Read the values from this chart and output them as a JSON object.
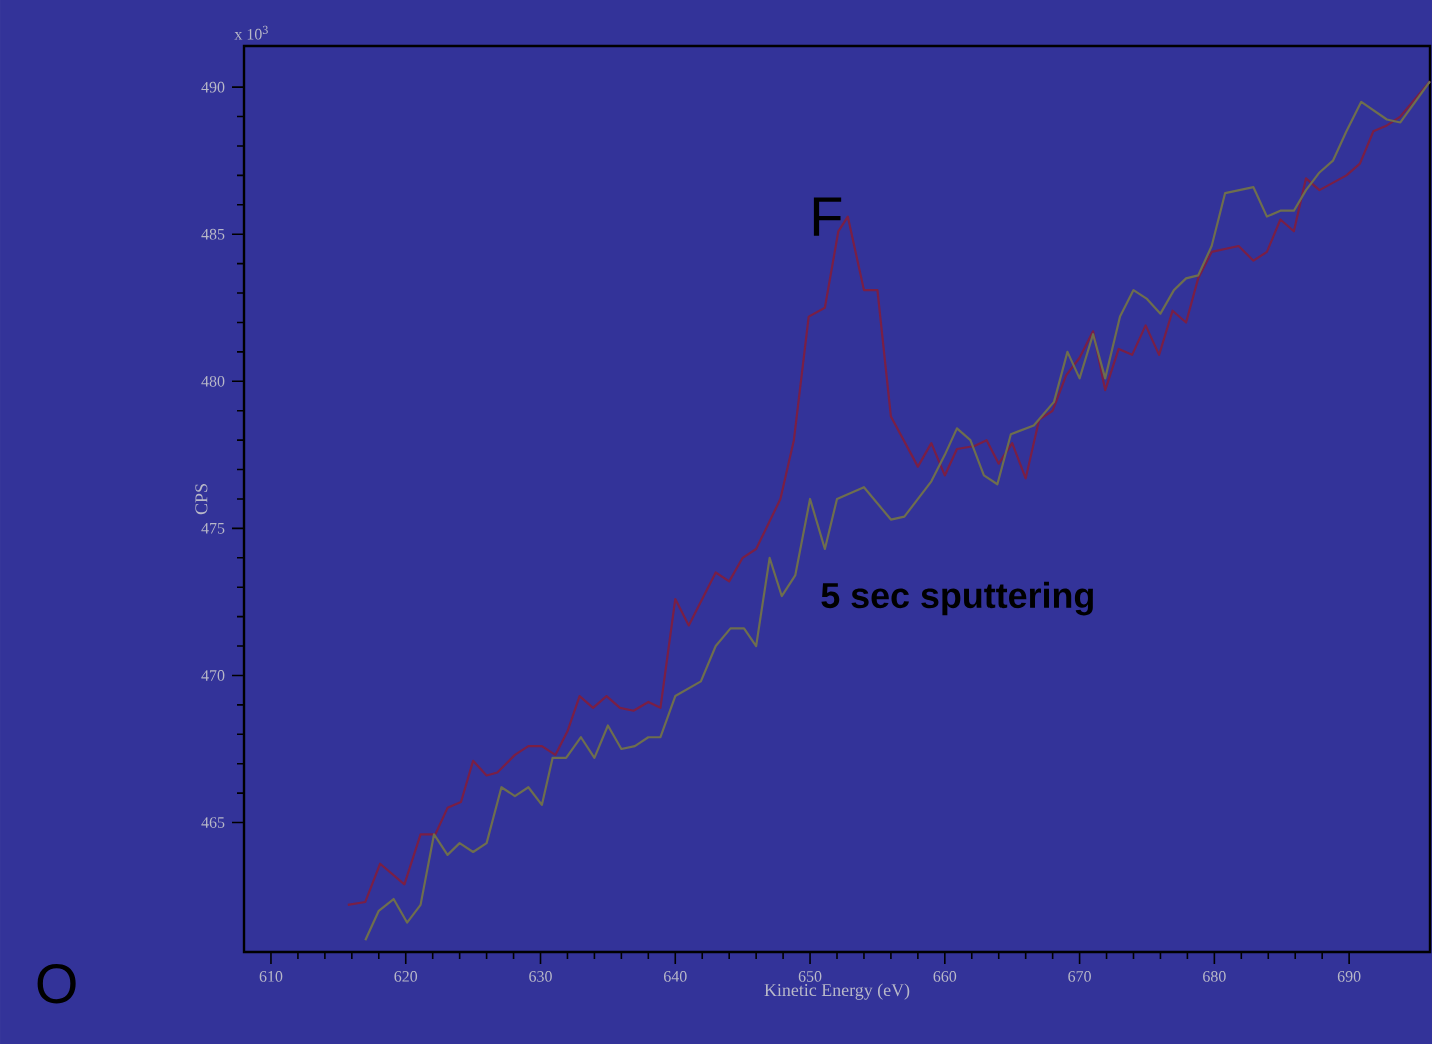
{
  "chart_data": {
    "type": "line",
    "xlabel": "Kinetic Energy (eV)",
    "ylabel": "CPS",
    "xlim": [
      608,
      696
    ],
    "ylim": [
      460.6,
      491.4
    ],
    "xticks": [
      610,
      620,
      630,
      640,
      650,
      660,
      670,
      680,
      690
    ],
    "yticks": [
      465,
      470,
      475,
      480,
      485,
      490
    ],
    "grid": false,
    "legend": false,
    "marker": "none",
    "line_style": "solid",
    "annotations": [
      "x 10$^{3}$",
      {
        "text": "F",
        "x": 652.8,
        "y": 485.6
      },
      "O"
    ],
    "series": [
      {
        "color": "#7a1f45",
        "x": [
          615.7,
          617.0,
          618.1,
          619.9,
          621.1,
          622.2,
          623.1,
          624.1,
          625.0,
          626.0,
          626.8,
          628.1,
          629.1,
          630.1,
          631.1,
          632.0,
          632.9,
          633.9,
          634.9,
          635.9,
          636.9,
          638.0,
          638.9,
          640.0,
          641.0,
          643.0,
          644.0,
          645.0,
          646.0,
          647.8,
          648.8,
          649.9,
          651.1,
          652.1,
          652.8,
          654.0,
          655.0,
          656.0,
          658.0,
          659.0,
          660.0,
          660.9,
          662.2,
          663.1,
          664.0,
          665.0,
          666.0,
          667.0,
          668.0,
          669.0,
          670.0,
          671.0,
          671.9,
          672.9,
          673.9,
          674.9,
          675.9,
          676.9,
          677.9,
          678.8,
          679.8,
          681.8,
          682.9,
          683.9,
          684.9,
          685.9,
          686.8,
          687.8,
          689.8,
          690.8,
          691.8,
          692.8,
          693.8,
          696.0
        ],
        "values": [
          462.2,
          462.3,
          463.6,
          462.9,
          464.6,
          464.6,
          465.5,
          465.7,
          467.1,
          466.6,
          466.7,
          467.3,
          467.6,
          467.6,
          467.3,
          468.1,
          469.3,
          468.9,
          469.3,
          468.9,
          468.8,
          469.1,
          468.9,
          472.6,
          471.7,
          473.5,
          473.2,
          474.0,
          474.3,
          476.0,
          478.0,
          482.2,
          482.5,
          485.1,
          485.6,
          483.1,
          483.1,
          478.8,
          477.1,
          477.9,
          476.8,
          477.7,
          477.8,
          478.0,
          477.2,
          477.9,
          476.7,
          478.7,
          479.0,
          480.2,
          480.8,
          481.7,
          479.7,
          481.1,
          480.9,
          481.9,
          480.9,
          482.4,
          482.0,
          483.5,
          484.4,
          484.6,
          484.1,
          484.4,
          485.5,
          485.1,
          486.9,
          486.5,
          487.0,
          487.4,
          488.5,
          488.7,
          489.0,
          490.2
        ]
      },
      {
        "name": "5 sec sputtering",
        "color": "#6e6e4e",
        "x": [
          617.0,
          618.0,
          619.1,
          620.1,
          621.1,
          622.1,
          623.1,
          624.0,
          625.0,
          626.0,
          627.1,
          628.1,
          629.1,
          630.1,
          630.9,
          631.9,
          633.0,
          634.0,
          635.0,
          636.0,
          637.0,
          638.0,
          638.9,
          640.0,
          641.9,
          643.0,
          644.1,
          645.1,
          646.0,
          647.0,
          647.9,
          648.9,
          650.0,
          651.1,
          652.0,
          654.0,
          656.0,
          657.0,
          658.0,
          659.0,
          660.0,
          660.9,
          661.9,
          662.9,
          663.9,
          664.9,
          666.6,
          668.1,
          669.1,
          670.0,
          671.0,
          671.9,
          673.0,
          674.0,
          675.0,
          676.0,
          677.0,
          677.9,
          678.8,
          679.8,
          680.8,
          682.9,
          683.9,
          684.9,
          685.9,
          686.8,
          687.8,
          688.8,
          689.8,
          690.9,
          692.8,
          693.8,
          696.0
        ],
        "values": [
          461.0,
          462.0,
          462.4,
          461.6,
          462.2,
          464.6,
          463.9,
          464.3,
          464.0,
          464.3,
          466.2,
          465.9,
          466.2,
          465.6,
          467.2,
          467.2,
          467.9,
          467.2,
          468.3,
          467.5,
          467.6,
          467.9,
          467.9,
          469.3,
          469.8,
          471.0,
          471.6,
          471.6,
          471.0,
          474.0,
          472.7,
          473.4,
          476.0,
          474.3,
          476.0,
          476.4,
          475.3,
          475.4,
          476.0,
          476.6,
          477.5,
          478.4,
          478.0,
          476.8,
          476.5,
          478.2,
          478.5,
          479.3,
          481.0,
          480.1,
          481.6,
          480.1,
          482.2,
          483.1,
          482.8,
          482.3,
          483.1,
          483.5,
          483.6,
          484.6,
          486.4,
          486.6,
          485.6,
          485.8,
          485.8,
          486.5,
          487.1,
          487.5,
          488.5,
          489.5,
          488.9,
          488.8,
          490.2
        ]
      }
    ]
  }
}
